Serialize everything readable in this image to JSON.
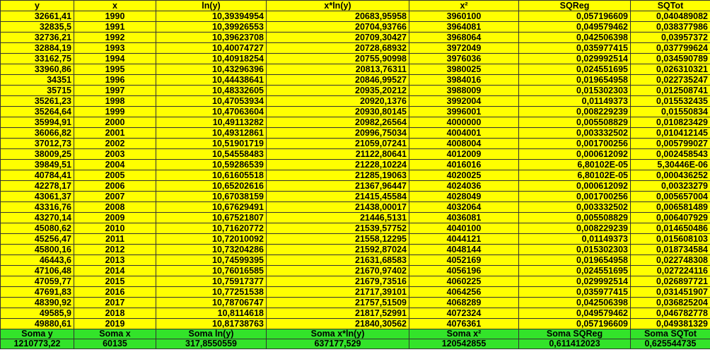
{
  "header": [
    "y",
    "x",
    "ln(y)",
    "x*ln(y)",
    "x²",
    "SQReg",
    "SQTot"
  ],
  "rows": [
    [
      "32661,41",
      "1990",
      "10,39394954",
      "20683,95958",
      "3960100",
      "0,057196609",
      "0,040489082"
    ],
    [
      "32835,5",
      "1991",
      "10,39926553",
      "20704,93766",
      "3964081",
      "0,049579462",
      "0,038377986"
    ],
    [
      "32736,21",
      "1992",
      "10,39623708",
      "20709,30427",
      "3968064",
      "0,042506398",
      "0,03957372"
    ],
    [
      "32884,19",
      "1993",
      "10,40074727",
      "20728,68932",
      "3972049",
      "0,035977415",
      "0,037799624"
    ],
    [
      "33162,75",
      "1994",
      "10,40918254",
      "20755,90998",
      "3976036",
      "0,029992514",
      "0,034590789"
    ],
    [
      "33960,86",
      "1995",
      "10,43296396",
      "20813,76311",
      "3980025",
      "0,024551695",
      "0,026310321"
    ],
    [
      "34351",
      "1996",
      "10,44438641",
      "20846,99527",
      "3984016",
      "0,019654958",
      "0,022735247"
    ],
    [
      "35715",
      "1997",
      "10,48332605",
      "20935,20212",
      "3988009",
      "0,015302303",
      "0,012508741"
    ],
    [
      "35261,23",
      "1998",
      "10,47053934",
      "20920,1376",
      "3992004",
      "0,01149373",
      "0,015532435"
    ],
    [
      "35264,64",
      "1999",
      "10,47063604",
      "20930,80145",
      "3996001",
      "0,008229239",
      "0,01550834"
    ],
    [
      "35994,91",
      "2000",
      "10,49113282",
      "20982,26564",
      "4000000",
      "0,005508829",
      "0,010823429"
    ],
    [
      "36066,82",
      "2001",
      "10,49312861",
      "20996,75034",
      "4004001",
      "0,003332502",
      "0,010412145"
    ],
    [
      "37012,73",
      "2002",
      "10,51901719",
      "21059,07241",
      "4008004",
      "0,001700256",
      "0,005799027"
    ],
    [
      "38009,25",
      "2003",
      "10,54558483",
      "21122,80641",
      "4012009",
      "0,000612092",
      "0,002458543"
    ],
    [
      "39849,51",
      "2004",
      "10,59286539",
      "21228,10224",
      "4016016",
      "6,80102E-05",
      "5,30446E-06"
    ],
    [
      "40784,41",
      "2005",
      "10,61605518",
      "21285,19063",
      "4020025",
      "6,80102E-05",
      "0,000436252"
    ],
    [
      "42278,17",
      "2006",
      "10,65202616",
      "21367,96447",
      "4024036",
      "0,000612092",
      "0,00323279"
    ],
    [
      "43061,37",
      "2007",
      "10,67038159",
      "21415,45584",
      "4028049",
      "0,001700256",
      "0,005657004"
    ],
    [
      "43316,76",
      "2008",
      "10,67629491",
      "21438,00017",
      "4032064",
      "0,003332502",
      "0,006581489"
    ],
    [
      "43270,14",
      "2009",
      "10,67521807",
      "21446,5131",
      "4036081",
      "0,005508829",
      "0,006407929"
    ],
    [
      "45080,62",
      "2010",
      "10,71620772",
      "21539,57752",
      "4040100",
      "0,008229239",
      "0,014650486"
    ],
    [
      "45256,47",
      "2011",
      "10,72010092",
      "21558,12295",
      "4044121",
      "0,01149373",
      "0,015608103"
    ],
    [
      "45800,16",
      "2012",
      "10,73204286",
      "21592,87024",
      "4048144",
      "0,015302303",
      "0,018734584"
    ],
    [
      "46443,6",
      "2013",
      "10,74599395",
      "21631,68583",
      "4052169",
      "0,019654958",
      "0,022748308"
    ],
    [
      "47106,48",
      "2014",
      "10,76016585",
      "21670,97402",
      "4056196",
      "0,024551695",
      "0,027224116"
    ],
    [
      "47059,77",
      "2015",
      "10,75917377",
      "21679,73516",
      "4060225",
      "0,029992514",
      "0,026897721"
    ],
    [
      "47691,83",
      "2016",
      "10,77251538",
      "21717,39101",
      "4064256",
      "0,035977415",
      "0,031451907"
    ],
    [
      "48390,92",
      "2017",
      "10,78706747",
      "21757,51509",
      "4068289",
      "0,042506398",
      "0,036825204"
    ],
    [
      "49585,9",
      "2018",
      "10,8114618",
      "21817,52991",
      "4072324",
      "0,049579462",
      "0,046782778"
    ],
    [
      "49880,61",
      "2019",
      "10,81738763",
      "21840,30562",
      "4076361",
      "0,057196609",
      "0,049381329"
    ]
  ],
  "totals_labels": [
    "Soma y",
    "Soma x",
    "Soma ln(y)",
    "Soma x*ln(y)",
    "Soma x²",
    "Soma SQReg",
    "Soma SQTot"
  ],
  "totals_values": [
    "1210773,22",
    "60135",
    "317,8550559",
    "637177,529",
    "120542855",
    "0,611412023",
    "0,625544735"
  ],
  "colors": {
    "data_background": "#ffff00",
    "totals_background": "#33e32a"
  }
}
